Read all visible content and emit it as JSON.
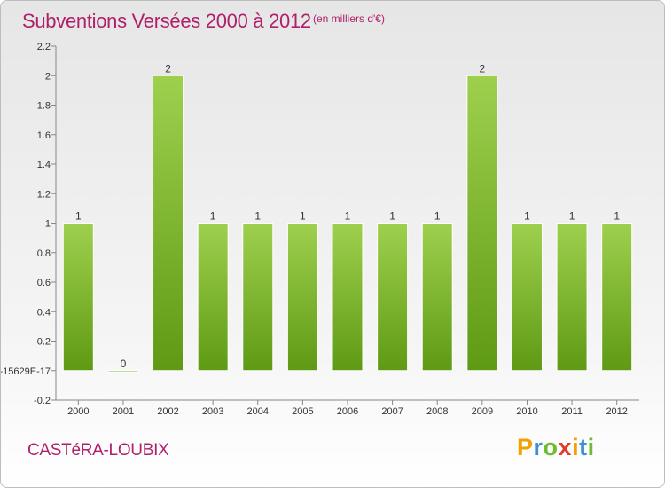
{
  "header": {
    "title": "Subventions Versées 2000 à 2012",
    "subtitle": "(en milliers d'€)"
  },
  "footer": {
    "commune": "CASTéRA-LOUBIX",
    "logo_letters": [
      "P",
      "r",
      "o",
      "x",
      "i",
      "t",
      "i"
    ]
  },
  "colors": {
    "title": "#b0206a",
    "bar_light": "#9ed04e",
    "bar_dark": "#5f9a14",
    "logo": [
      "#f2a100",
      "#3a8fd6",
      "#6cbd2f",
      "#e23a2c",
      "#f2a100",
      "#3a8fd6",
      "#6cbd2f"
    ]
  },
  "chart_data": {
    "type": "bar",
    "categories": [
      "2000",
      "2001",
      "2002",
      "2003",
      "2004",
      "2005",
      "2006",
      "2007",
      "2008",
      "2009",
      "2010",
      "2011",
      "2012"
    ],
    "values": [
      1,
      0,
      2,
      1,
      1,
      1,
      1,
      1,
      1,
      2,
      1,
      1,
      1
    ],
    "data_labels": [
      "1",
      "0",
      "2",
      "1",
      "1",
      "1",
      "1",
      "1",
      "1",
      "2",
      "1",
      "1",
      "1"
    ],
    "title": "Subventions Versées 2000 à 2012",
    "ylim": [
      -0.2,
      2.2
    ],
    "yticks": [
      {
        "value": 2.2,
        "label": "2.2"
      },
      {
        "value": 2.0,
        "label": "2"
      },
      {
        "value": 1.8,
        "label": "1.8"
      },
      {
        "value": 1.6,
        "label": "1.6"
      },
      {
        "value": 1.4,
        "label": "1.4"
      },
      {
        "value": 1.2,
        "label": "1.2"
      },
      {
        "value": 1.0,
        "label": "1"
      },
      {
        "value": 0.8,
        "label": "0.8"
      },
      {
        "value": 0.6,
        "label": "0.6"
      },
      {
        "value": 0.4,
        "label": "0.4"
      },
      {
        "value": 0.2,
        "label": "0.2"
      },
      {
        "value": 0.0,
        "label": "-15629E-17"
      },
      {
        "value": -0.2,
        "label": "-0.2"
      }
    ],
    "grid": false,
    "legend": "none"
  }
}
